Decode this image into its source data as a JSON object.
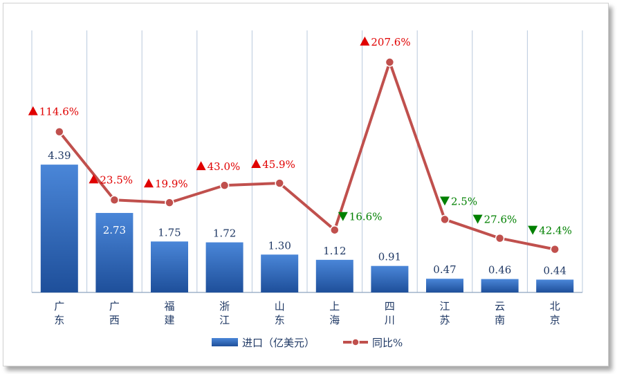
{
  "chart_data": {
    "type": "bar",
    "categories": [
      "广东",
      "广西",
      "福建",
      "浙江",
      "山东",
      "上海",
      "四川",
      "江苏",
      "云南",
      "北京"
    ],
    "series": [
      {
        "name": "进口（亿美元）",
        "type": "bar",
        "values": [
          4.39,
          2.73,
          1.75,
          1.72,
          1.3,
          1.12,
          0.91,
          0.47,
          0.46,
          0.44
        ],
        "labels": [
          "4.39",
          "2.73",
          "1.75",
          "1.72",
          "1.30",
          "1.12",
          "0.91",
          "0.47",
          "0.46",
          "0.44"
        ],
        "color": "#2e6bc4"
      },
      {
        "name": "同比%",
        "type": "line",
        "values": [
          114.6,
          23.5,
          19.9,
          43.0,
          45.9,
          -16.6,
          207.6,
          -2.5,
          -27.6,
          -42.4
        ],
        "labels": [
          "114.6%",
          "23.5%",
          "19.9%",
          "43.0%",
          "45.9%",
          "16.6%",
          "207.6%",
          "2.5%",
          "27.6%",
          "42.4%"
        ],
        "color": "#c0504d"
      }
    ],
    "up_color": "#e00000",
    "down_color": "#008000",
    "bar_ylim": [
      0,
      9
    ],
    "line_ylim": [
      -100,
      250
    ],
    "grid": "vertical",
    "legend": "bottom"
  }
}
